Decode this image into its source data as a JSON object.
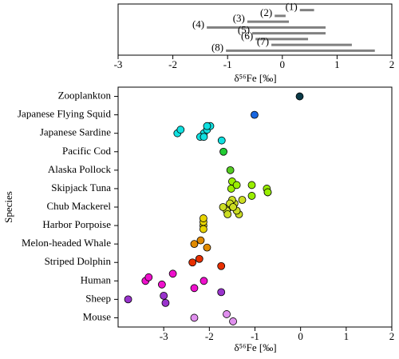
{
  "chart_data": [
    {
      "type": "range",
      "labels": [
        "(1)",
        "(2)",
        "(3)",
        "(4)",
        "(5)",
        "(6)",
        "(7)",
        "(8)"
      ],
      "low": [
        0.32,
        -0.14,
        -0.64,
        -1.38,
        -0.55,
        -0.49,
        -0.2,
        -1.03
      ],
      "high": [
        0.58,
        0.06,
        0.12,
        0.79,
        0.79,
        0.47,
        1.27,
        1.69
      ],
      "color": "#808080",
      "xlim": [
        -3,
        2
      ],
      "xticks": [
        -3,
        -2,
        -1,
        0,
        1,
        2
      ],
      "xlabel": "δ⁵⁶Fe [‰]"
    },
    {
      "type": "scatter",
      "categories": [
        "Zooplankton",
        "Japanese Flying Squid",
        "Japanese Sardine",
        "Pacific Cod",
        "Alaska Pollock",
        "Skipjack Tuna",
        "Chub Mackerel",
        "Harbor Porpoise",
        "Melon-headed Whale",
        "Striped Dolphin",
        "Human",
        "Sheep",
        "Mouse"
      ],
      "colors": [
        "#0a3a48",
        "#1866e0",
        "#10e0e0",
        "#22cc33",
        "#55cc22",
        "#99ee00",
        "#ccdd22",
        "#e8d400",
        "#e08a00",
        "#e83000",
        "#ee10cc",
        "#9933cc",
        "#e090ee"
      ],
      "points": [
        [
          -0.02
        ],
        [
          -1.01
        ],
        [
          -2.12,
          -2.05,
          -2.2,
          -1.98,
          -1.73,
          -2.7,
          -2.63,
          -2.12,
          -2.05
        ],
        [
          -1.69
        ],
        [
          -1.54
        ],
        [
          -1.52,
          -1.07,
          -0.72,
          -1.5,
          -1.07,
          -0.74,
          -1.4,
          -0.72
        ],
        [
          -1.55,
          -1.45,
          -1.62,
          -1.5,
          -1.35,
          -1.7,
          -1.55,
          -1.4,
          -1.28,
          -1.6,
          -1.48
        ],
        [
          -2.13,
          -2.13,
          -2.13,
          -2.13
        ],
        [
          -2.33,
          -2.19,
          -2.05
        ],
        [
          -2.37,
          -2.22,
          -1.74
        ],
        [
          -3.4,
          -3.33,
          -3.04,
          -2.8,
          -2.33,
          -2.12
        ],
        [
          -3.78,
          -3.0,
          -2.96,
          -1.74
        ],
        [
          -2.33,
          -1.62,
          -1.48
        ]
      ],
      "xlim": [
        -4,
        2
      ],
      "xticks": [
        -3,
        -2,
        -1,
        0,
        1,
        2
      ],
      "xlabel": "δ⁵⁶Fe [‰]",
      "ylabel": "Species"
    }
  ]
}
